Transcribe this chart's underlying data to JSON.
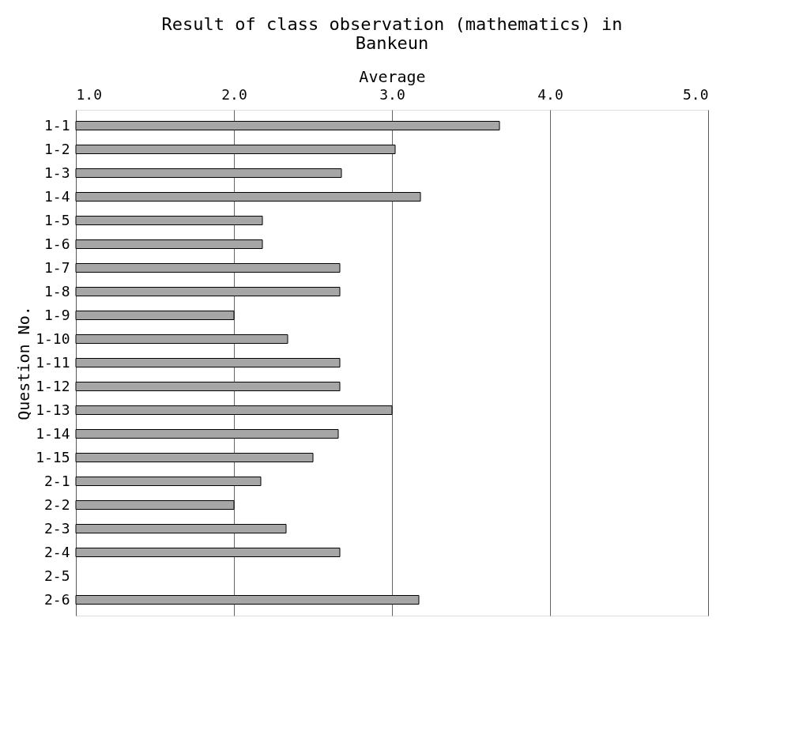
{
  "chart_data": {
    "type": "bar",
    "orientation": "horizontal",
    "title": "Result of class observation (mathematics) in Bankeun",
    "xlabel": "Average",
    "ylabel": "Question No.",
    "categories": [
      "1-1",
      "1-2",
      "1-3",
      "1-4",
      "1-5",
      "1-6",
      "1-7",
      "1-8",
      "1-9",
      "1-10",
      "1-11",
      "1-12",
      "1-13",
      "1-14",
      "1-15",
      "2-1",
      "2-2",
      "2-3",
      "2-4",
      "2-5",
      "2-6"
    ],
    "values": [
      3.68,
      3.02,
      2.68,
      3.18,
      2.18,
      2.18,
      2.67,
      2.67,
      2.0,
      2.34,
      2.67,
      2.67,
      3.0,
      2.66,
      2.5,
      2.17,
      2.0,
      2.33,
      2.67,
      null,
      3.17
    ],
    "color": "#a6a6a6",
    "xlim": [
      1,
      5
    ],
    "xticks": [
      {
        "value": 1,
        "label": "1.0"
      },
      {
        "value": 2,
        "label": "2.0"
      },
      {
        "value": 3,
        "label": "3.0"
      },
      {
        "value": 4,
        "label": "4.0"
      },
      {
        "value": 5,
        "label": "5.0"
      }
    ],
    "grid": "x"
  }
}
